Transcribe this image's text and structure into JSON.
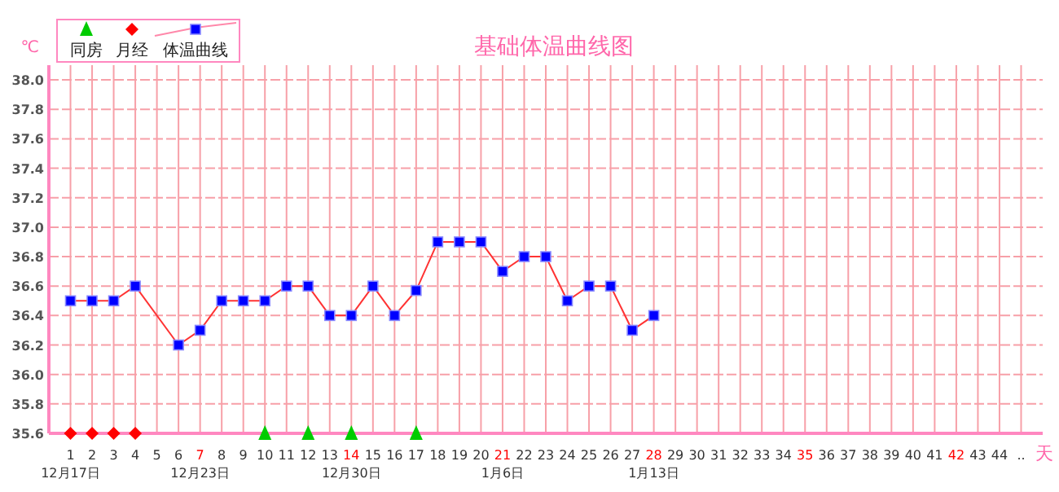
{
  "chart_data": {
    "type": "line",
    "title": "基础体温曲线图",
    "ylabel": "℃",
    "xlabel": "天",
    "xlim": [
      0,
      46
    ],
    "ylim": [
      35.6,
      38.1
    ],
    "xticks": [
      {
        "value": 1,
        "label": "1\n12月17日"
      },
      2,
      3,
      4,
      5,
      6,
      {
        "value": 7,
        "label": "7\n12月23日"
      },
      8,
      9,
      10,
      11,
      12,
      13,
      {
        "value": 14,
        "label": "14\n12月30日"
      },
      15,
      16,
      17,
      18,
      19,
      20,
      {
        "value": 21,
        "label": "21\n1月6日"
      },
      22,
      23,
      24,
      25,
      26,
      27,
      {
        "value": 28,
        "label": "28\n1月13日"
      },
      29,
      30,
      31,
      32,
      33,
      34,
      35,
      36,
      37,
      38,
      39,
      40,
      41,
      42,
      43,
      44,
      {
        "value": 45,
        "label": ".."
      }
    ],
    "yticks": [
      35.6,
      35.8,
      {
        "value": 36.0,
        "label": "36.0"
      },
      36.2,
      36.4,
      36.6,
      36.8,
      {
        "value": 37.0,
        "label": "37.0"
      },
      37.2,
      37.4,
      37.6,
      37.8,
      {
        "value": 38.0,
        "label": "38.0"
      }
    ],
    "grid": true,
    "legend": "top left",
    "series": [
      {
        "name": "同房",
        "type": "scatter",
        "marker": "triangle",
        "color": "#00cc00",
        "x": [
          10,
          12,
          14,
          17
        ],
        "values": [
          35.6,
          35.6,
          35.6,
          35.6
        ]
      },
      {
        "name": "月经",
        "type": "scatter",
        "marker": "diamond",
        "color": "#ff0000",
        "x": [
          1,
          2,
          3,
          4
        ],
        "values": [
          35.6,
          35.6,
          35.6,
          35.6
        ]
      },
      {
        "name": "体温曲线",
        "marker": "square",
        "color": "#ff3333",
        "colors": [
          "#0000ff",
          "#0000ff",
          "#0000ff",
          "#0000ff",
          "#0000ff",
          "#0000ff",
          "#0000ff",
          "#0000ff",
          "#0000ff",
          "#0000ff",
          "#0000ff",
          "#0000ff",
          "#0000ff",
          "#0000ff",
          "#0000ff",
          "#0000ff",
          "#0000ff",
          "#0000ff",
          "#0000ff",
          "#0000ff",
          "#0000ff",
          "#0000ff",
          "#0000ff",
          "#0000ff",
          "#0000ff",
          "#0000ff",
          "#0000ff"
        ],
        "x": [
          1,
          2,
          3,
          4,
          6,
          7,
          8,
          9,
          10,
          11,
          12,
          13,
          14,
          15,
          16,
          17,
          18,
          19,
          20,
          21,
          22,
          23,
          24,
          25,
          26,
          27,
          28
        ],
        "values": [
          36.5,
          36.5,
          36.5,
          36.6,
          36.2,
          36.3,
          36.5,
          36.5,
          36.5,
          36.6,
          36.6,
          36.4,
          36.4,
          36.6,
          36.4,
          36.57,
          36.9,
          36.9,
          36.9,
          36.7,
          36.8,
          36.8,
          36.5,
          36.6,
          36.6,
          36.3,
          36.4
        ]
      }
    ]
  }
}
